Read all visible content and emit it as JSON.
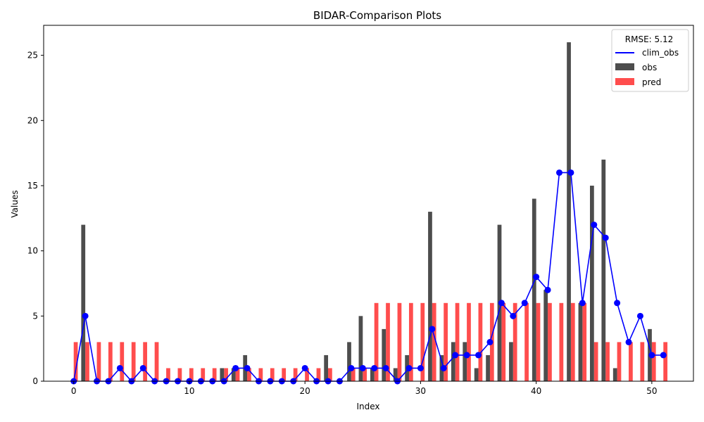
{
  "chart_data": {
    "type": "bar",
    "title": "BIDAR-Comparison Plots",
    "xlabel": "Index",
    "ylabel": "Values",
    "xlim": [
      -2.6,
      53.6
    ],
    "ylim": [
      0,
      27.3
    ],
    "xticks": [
      0,
      10,
      20,
      30,
      40,
      50
    ],
    "yticks": [
      0,
      5,
      10,
      15,
      20,
      25
    ],
    "grid": false,
    "legend_position": "top-right",
    "legend_title": "RMSE: 5.12",
    "x": [
      0,
      1,
      2,
      3,
      4,
      5,
      6,
      7,
      8,
      9,
      10,
      11,
      12,
      13,
      14,
      15,
      16,
      17,
      18,
      19,
      20,
      21,
      22,
      23,
      24,
      25,
      26,
      27,
      28,
      29,
      30,
      31,
      32,
      33,
      34,
      35,
      36,
      37,
      38,
      39,
      40,
      41,
      42,
      43,
      44,
      45,
      46,
      47,
      48,
      49,
      50,
      51
    ],
    "series": [
      {
        "name": "clim_obs",
        "kind": "line",
        "color": "#0000ff",
        "values": [
          0,
          5,
          0,
          0,
          1,
          0,
          1,
          0,
          0,
          0,
          0,
          0,
          0,
          0,
          1,
          1,
          0,
          0,
          0,
          0,
          1,
          0,
          0,
          0,
          1,
          1,
          1,
          1,
          0,
          1,
          1,
          4,
          1,
          2,
          2,
          2,
          3,
          6,
          5,
          6,
          8,
          7,
          16,
          16,
          6,
          12,
          11,
          6,
          3,
          5,
          2,
          2
        ]
      },
      {
        "name": "obs",
        "kind": "bar",
        "color": "#4d4d4d",
        "values": [
          0,
          12,
          0,
          0,
          0,
          0,
          0,
          0,
          0,
          0,
          0,
          0,
          0,
          1,
          1,
          2,
          0,
          0,
          0,
          0,
          0,
          0,
          2,
          0,
          3,
          5,
          1,
          4,
          1,
          2,
          0,
          13,
          2,
          3,
          3,
          1,
          2,
          12,
          3,
          0,
          14,
          7,
          0,
          26,
          6,
          15,
          17,
          1,
          0,
          0,
          4,
          0
        ]
      },
      {
        "name": "pred",
        "kind": "bar",
        "color": "#ff4d4d",
        "values": [
          3,
          3,
          3,
          3,
          3,
          3,
          3,
          3,
          1,
          1,
          1,
          1,
          1,
          1,
          1,
          1,
          1,
          1,
          1,
          1,
          1,
          1,
          1,
          0,
          1,
          1,
          6,
          6,
          6,
          6,
          6,
          6,
          6,
          6,
          6,
          6,
          6,
          6,
          6,
          6,
          6,
          6,
          6,
          6,
          6,
          3,
          3,
          3,
          3,
          3,
          3,
          3
        ]
      }
    ]
  }
}
